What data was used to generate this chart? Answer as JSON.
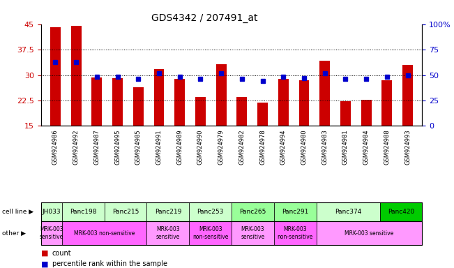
{
  "title": "GDS4342 / 207491_at",
  "samples": [
    "GSM924986",
    "GSM924992",
    "GSM924987",
    "GSM924995",
    "GSM924985",
    "GSM924991",
    "GSM924989",
    "GSM924990",
    "GSM924979",
    "GSM924982",
    "GSM924978",
    "GSM924994",
    "GSM924980",
    "GSM924983",
    "GSM924981",
    "GSM924984",
    "GSM924988",
    "GSM924993"
  ],
  "counts": [
    44.0,
    44.5,
    29.2,
    29.0,
    26.5,
    31.8,
    28.8,
    23.5,
    33.2,
    23.5,
    21.8,
    28.8,
    28.5,
    34.2,
    22.3,
    22.8,
    28.5,
    33.0
  ],
  "percentiles": [
    63,
    63,
    48,
    48,
    46,
    52,
    48,
    46,
    52,
    46,
    44,
    48,
    47,
    52,
    46,
    46,
    48,
    50
  ],
  "cell_lines": [
    {
      "name": "JH033",
      "start": 0,
      "end": 1,
      "color": "#ccffcc"
    },
    {
      "name": "Panc198",
      "start": 1,
      "end": 3,
      "color": "#ccffcc"
    },
    {
      "name": "Panc215",
      "start": 3,
      "end": 5,
      "color": "#ccffcc"
    },
    {
      "name": "Panc219",
      "start": 5,
      "end": 7,
      "color": "#ccffcc"
    },
    {
      "name": "Panc253",
      "start": 7,
      "end": 9,
      "color": "#ccffcc"
    },
    {
      "name": "Panc265",
      "start": 9,
      "end": 11,
      "color": "#99ff99"
    },
    {
      "name": "Panc291",
      "start": 11,
      "end": 13,
      "color": "#99ff99"
    },
    {
      "name": "Panc374",
      "start": 13,
      "end": 16,
      "color": "#ccffcc"
    },
    {
      "name": "Panc420",
      "start": 16,
      "end": 18,
      "color": "#00cc00"
    }
  ],
  "other_groups": [
    {
      "label": "MRK-003\nsensitive",
      "start": 0,
      "end": 1,
      "color": "#ff99ff"
    },
    {
      "label": "MRK-003 non-sensitive",
      "start": 1,
      "end": 5,
      "color": "#ff66ff"
    },
    {
      "label": "MRK-003\nsensitive",
      "start": 5,
      "end": 7,
      "color": "#ff99ff"
    },
    {
      "label": "MRK-003\nnon-sensitive",
      "start": 7,
      "end": 9,
      "color": "#ff66ff"
    },
    {
      "label": "MRK-003\nsensitive",
      "start": 9,
      "end": 11,
      "color": "#ff99ff"
    },
    {
      "label": "MRK-003\nnon-sensitive",
      "start": 11,
      "end": 13,
      "color": "#ff66ff"
    },
    {
      "label": "MRK-003 sensitive",
      "start": 13,
      "end": 18,
      "color": "#ff99ff"
    }
  ],
  "ylim": [
    15,
    45
  ],
  "yticks": [
    15,
    22.5,
    30,
    37.5,
    45
  ],
  "ytick_labels": [
    "15",
    "22.5",
    "30",
    "37.5",
    "45"
  ],
  "bar_color": "#cc0000",
  "dot_color": "#0000cc",
  "right_yticks": [
    0,
    25,
    50,
    75,
    100
  ],
  "right_ytick_labels": [
    "0",
    "25",
    "50",
    "75",
    "100%"
  ],
  "ylabel_left_color": "#cc0000",
  "ylabel_right_color": "#0000cc"
}
